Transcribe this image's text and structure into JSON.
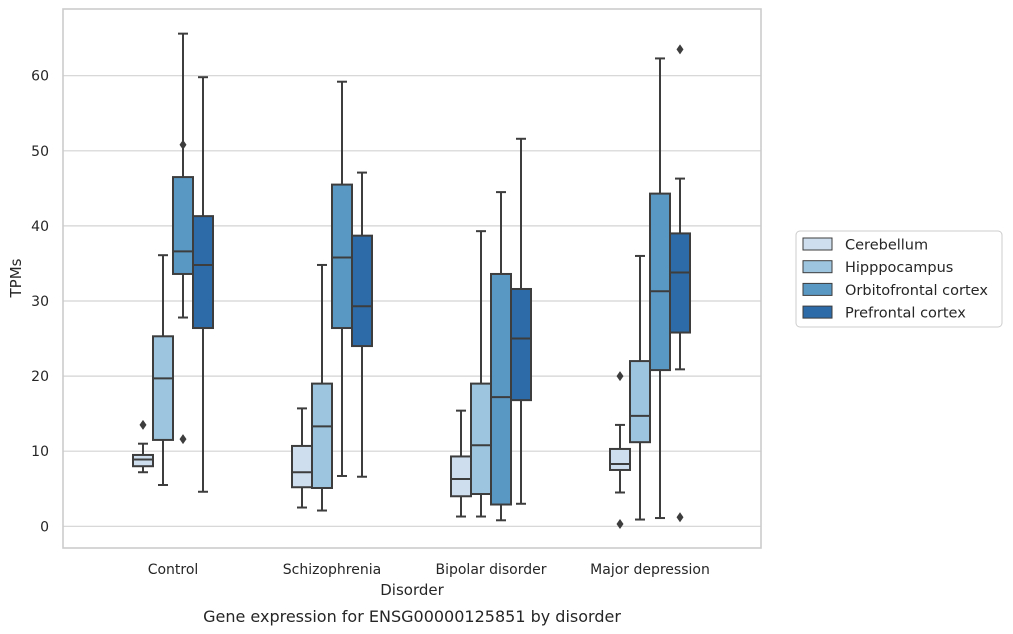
{
  "caption": "Gene expression for ENSG00000125851 by disorder",
  "chart_data": {
    "type": "box",
    "xlabel": "Disorder",
    "ylabel": "TPMs",
    "ylim": [
      -3,
      69
    ],
    "yticks": [
      0,
      10,
      20,
      30,
      40,
      50,
      60
    ],
    "grid": "horizontal",
    "legend_position": "right",
    "categories": [
      "Control",
      "Schizophrenia",
      "Bipolar disorder",
      "Major depression"
    ],
    "series": [
      {
        "name": "Cerebellum",
        "color": "#cfdeee",
        "boxes": [
          {
            "whislo": 7.2,
            "q1": 8.0,
            "med": 8.9,
            "q3": 9.5,
            "whishi": 11.0,
            "fliers": [
              13.5
            ]
          },
          {
            "whislo": 2.5,
            "q1": 5.2,
            "med": 7.2,
            "q3": 10.7,
            "whishi": 15.7,
            "fliers": []
          },
          {
            "whislo": 1.3,
            "q1": 4.0,
            "med": 6.3,
            "q3": 9.3,
            "whishi": 15.4,
            "fliers": []
          },
          {
            "whislo": 4.5,
            "q1": 7.5,
            "med": 8.3,
            "q3": 10.3,
            "whishi": 13.5,
            "fliers": [
              20.0,
              0.3
            ]
          }
        ]
      },
      {
        "name": "Hipppocampus",
        "color": "#9dc5df",
        "boxes": [
          {
            "whislo": 5.5,
            "q1": 11.5,
            "med": 19.7,
            "q3": 25.3,
            "whishi": 36.1,
            "fliers": []
          },
          {
            "whislo": 2.1,
            "q1": 5.1,
            "med": 13.3,
            "q3": 19.0,
            "whishi": 34.8,
            "fliers": []
          },
          {
            "whislo": 1.3,
            "q1": 4.3,
            "med": 10.8,
            "q3": 19.0,
            "whishi": 39.3,
            "fliers": []
          },
          {
            "whislo": 0.9,
            "q1": 11.2,
            "med": 14.7,
            "q3": 22.0,
            "whishi": 36.0,
            "fliers": []
          }
        ]
      },
      {
        "name": "Orbitofrontal cortex",
        "color": "#5a98c4",
        "boxes": [
          {
            "whislo": 27.8,
            "q1": 33.6,
            "med": 36.6,
            "q3": 46.5,
            "whishi": 65.6,
            "fliers": [
              50.8,
              11.6
            ]
          },
          {
            "whislo": 6.7,
            "q1": 26.4,
            "med": 35.8,
            "q3": 45.5,
            "whishi": 59.2,
            "fliers": []
          },
          {
            "whislo": 0.8,
            "q1": 2.9,
            "med": 17.2,
            "q3": 33.6,
            "whishi": 44.5,
            "fliers": []
          },
          {
            "whislo": 1.1,
            "q1": 20.8,
            "med": 31.3,
            "q3": 44.3,
            "whishi": 62.3,
            "fliers": []
          }
        ]
      },
      {
        "name": "Prefrontal cortex",
        "color": "#2c6aa8",
        "boxes": [
          {
            "whislo": 4.6,
            "q1": 26.4,
            "med": 34.8,
            "q3": 41.3,
            "whishi": 59.8,
            "fliers": []
          },
          {
            "whislo": 6.6,
            "q1": 24.0,
            "med": 29.3,
            "q3": 38.7,
            "whishi": 47.1,
            "fliers": []
          },
          {
            "whislo": 3.0,
            "q1": 16.8,
            "med": 25.0,
            "q3": 31.6,
            "whishi": 51.6,
            "fliers": []
          },
          {
            "whislo": 20.9,
            "q1": 25.8,
            "med": 33.8,
            "q3": 39.0,
            "whishi": 46.3,
            "fliers": [
              63.5,
              1.2
            ]
          }
        ]
      }
    ]
  }
}
